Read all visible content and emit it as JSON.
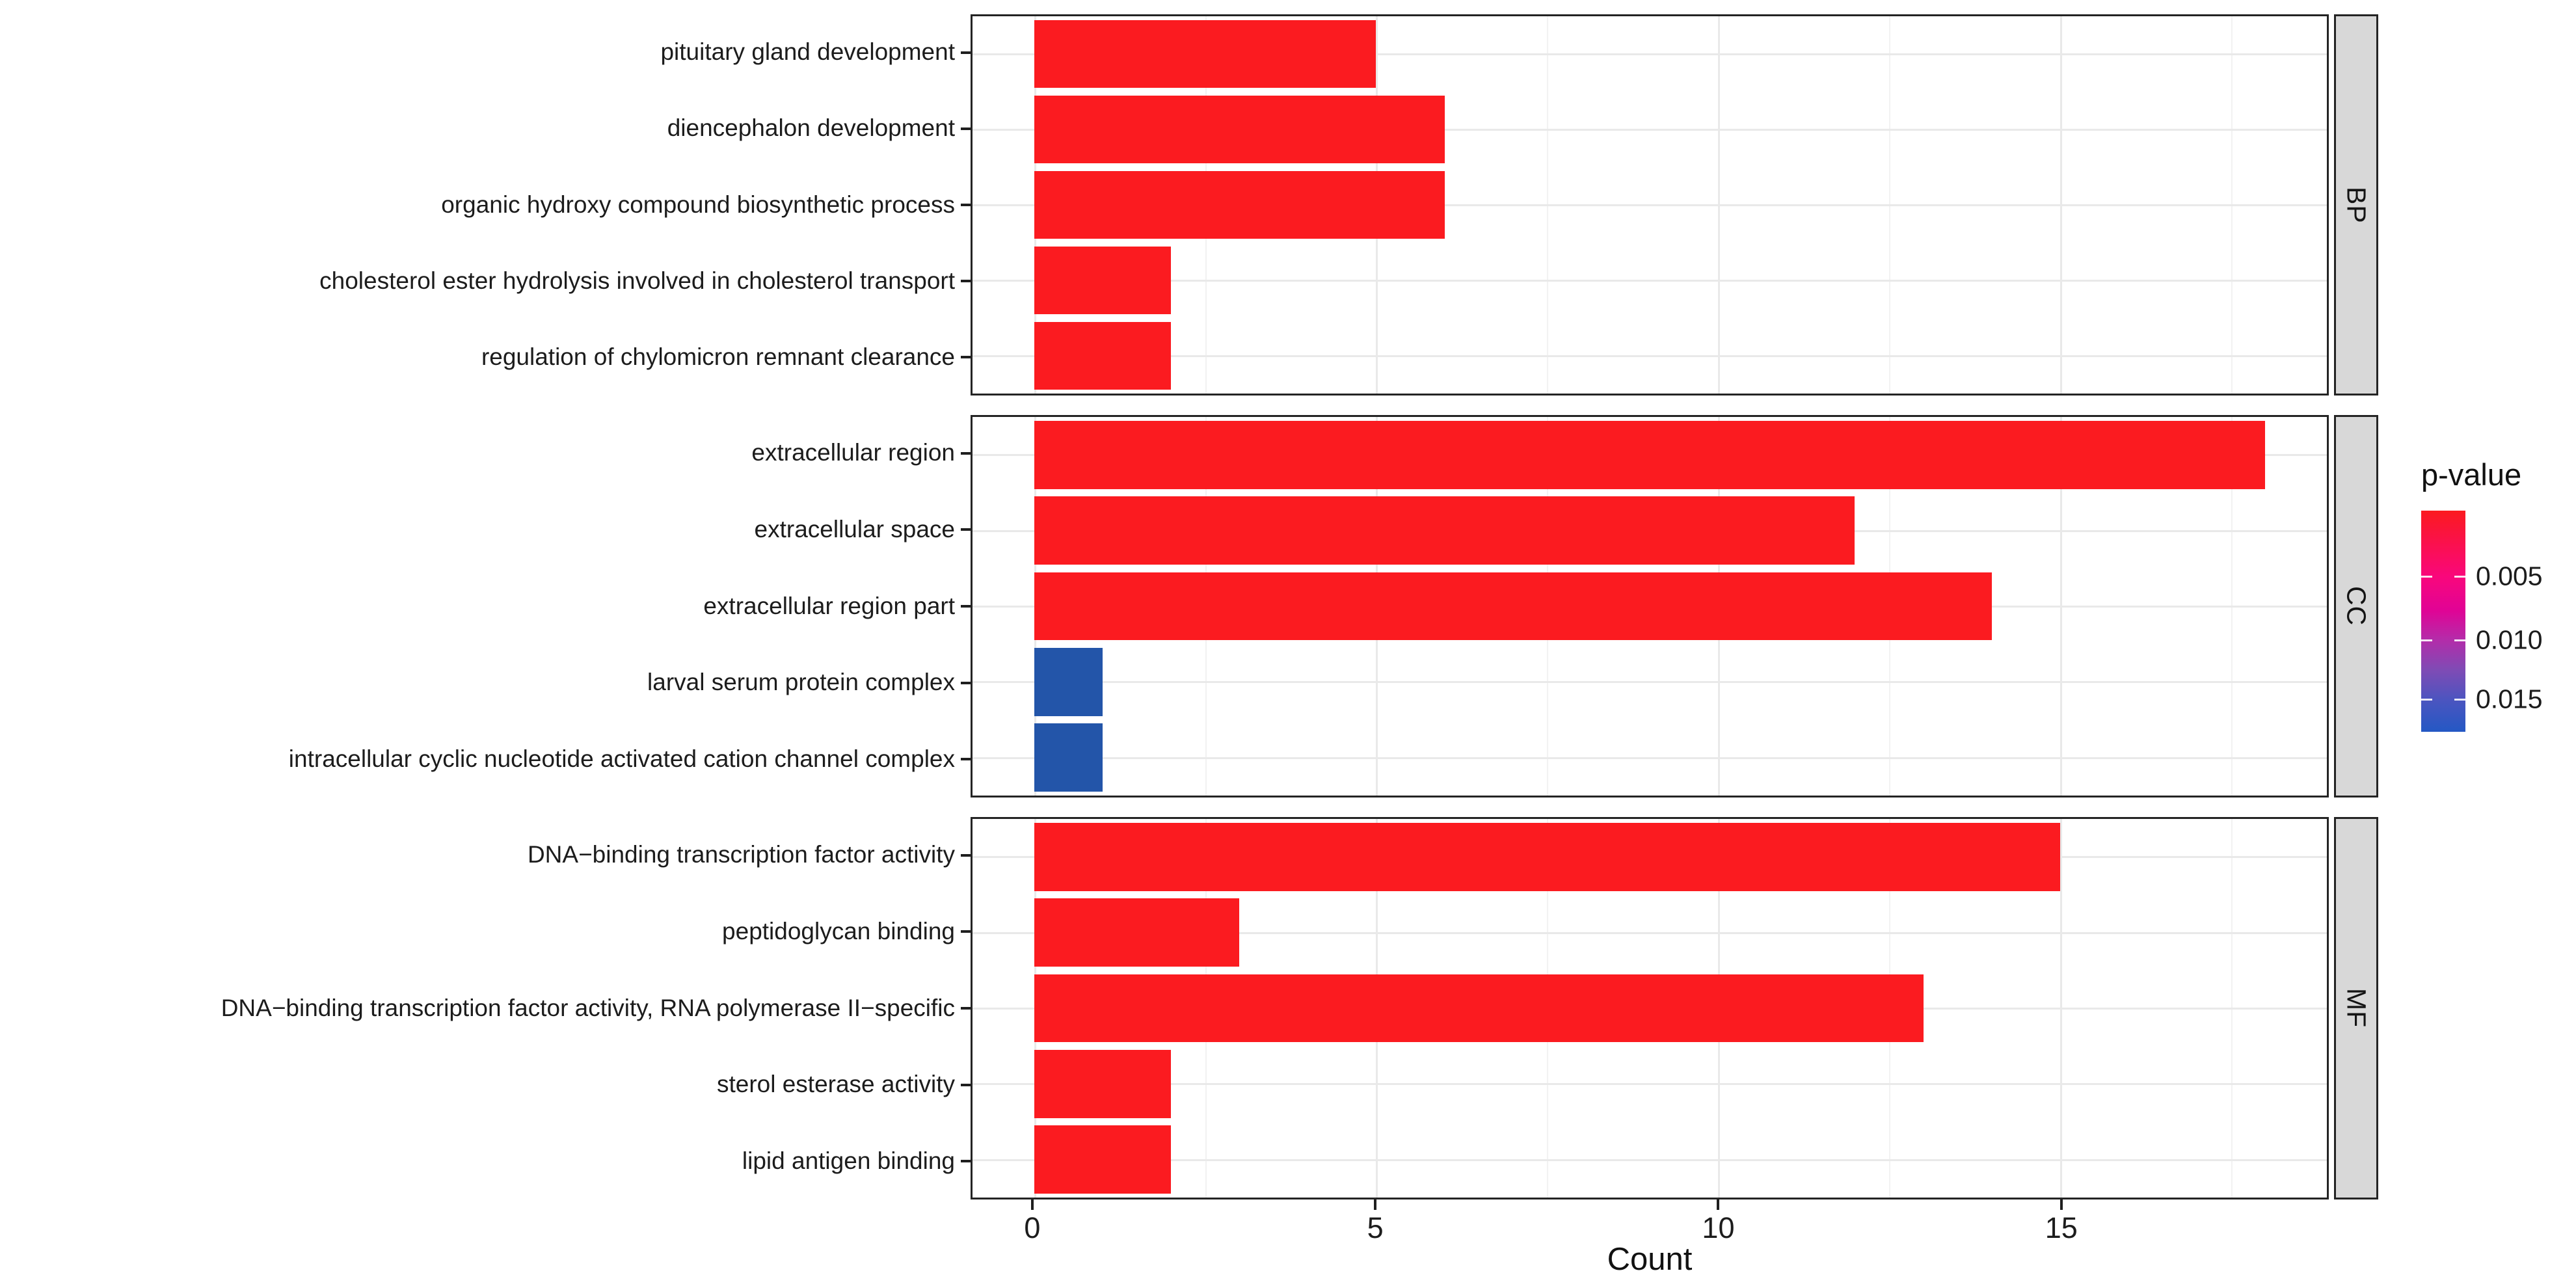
{
  "chart_data": {
    "type": "bar",
    "orientation": "horizontal",
    "title": "",
    "xlabel": "Count",
    "ylabel": "",
    "x_ticks": [
      0,
      5,
      10,
      15
    ],
    "x_tick_labels": [
      "0",
      "5",
      "10",
      "15"
    ],
    "x_minor_ticks": [
      2.5,
      7.5,
      12.5,
      17.5
    ],
    "x_domain": [
      -0.9,
      18.9
    ],
    "grid": true,
    "legend": {
      "title": "p-value",
      "type": "gradient",
      "position": "right",
      "tick_labels": [
        "0.005",
        "0.010",
        "0.015"
      ],
      "tick_positions": [
        0.297,
        0.585,
        0.853
      ],
      "gradient_stops": [
        "#FB1A1F 0%",
        "#F9077C 30%",
        "#E10395 45%",
        "#B52BA9 58%",
        "#7F4BB5 72%",
        "#4A55C0 86%",
        "#2458C4 100%"
      ]
    },
    "facets": [
      {
        "name": "BP",
        "categories": [
          "pituitary gland development",
          "diencephalon development",
          "organic hydroxy compound biosynthetic process",
          "cholesterol ester hydrolysis involved in cholesterol transport",
          "regulation of chylomicron remnant clearance"
        ],
        "values": [
          5,
          6,
          6,
          2,
          2
        ],
        "bar_colors": [
          "#FB1B20",
          "#FB1B20",
          "#FB1B20",
          "#FB1B20",
          "#FB1B20"
        ]
      },
      {
        "name": "CC",
        "categories": [
          "extracellular region",
          "extracellular space",
          "extracellular region part",
          "larval serum protein complex",
          "intracellular cyclic nucleotide activated cation channel complex"
        ],
        "values": [
          18,
          12,
          14,
          1,
          1
        ],
        "bar_colors": [
          "#FB1B20",
          "#FB1B20",
          "#FB1B20",
          "#2355A9",
          "#2355A9"
        ]
      },
      {
        "name": "MF",
        "categories": [
          "DNA−binding transcription factor activity",
          "peptidoglycan binding",
          "DNA−binding transcription factor activity, RNA polymerase II−specific",
          "sterol esterase activity",
          "lipid antigen binding"
        ],
        "values": [
          15,
          3,
          13,
          2,
          2
        ],
        "bar_colors": [
          "#FB1B20",
          "#FB1B20",
          "#FB1B20",
          "#FB1B20",
          "#FB1B20"
        ]
      }
    ],
    "colors": {
      "bar_red": "#FB1B20",
      "bar_blue": "#2355A9",
      "strip_bg": "#d8d8d8",
      "panel_border": "#242424",
      "grid_major": "#e9e9e9",
      "grid_minor": "#f2f2f2",
      "axis_text": "#1c1c1c"
    }
  }
}
